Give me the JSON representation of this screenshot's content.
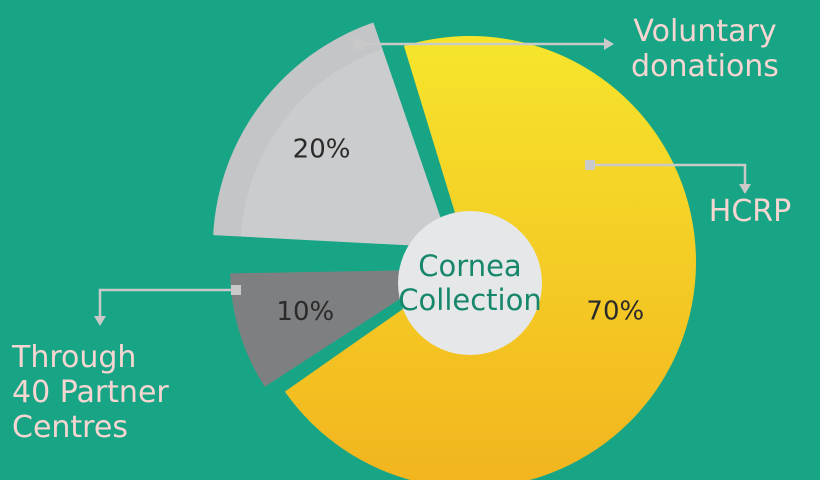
{
  "chart_data": {
    "type": "pie",
    "center_label": "Cornea\nCollection",
    "categories": [
      "HCRP",
      "Voluntary\ndonations",
      "Through\n40 Partner\nCentres"
    ],
    "values": [
      70,
      10,
      20
    ],
    "value_labels": [
      "70%",
      "10%",
      "20%"
    ],
    "colors": [
      "#f3c21f",
      "#7e7f81",
      "#c4c5c7"
    ]
  }
}
